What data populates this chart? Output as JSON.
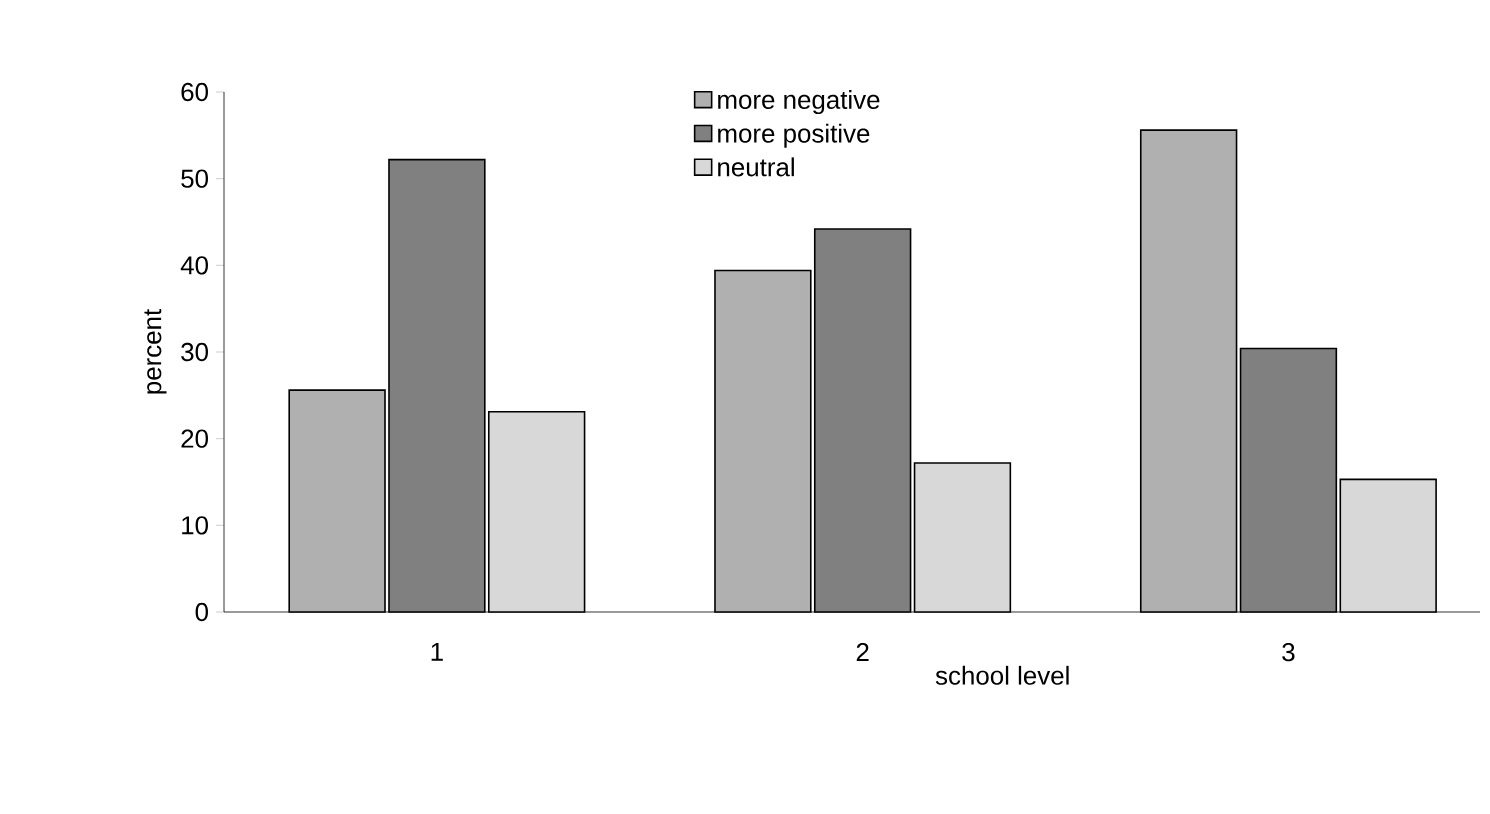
{
  "chart_data": {
    "type": "bar",
    "xlabel": "school level",
    "ylabel": "percent",
    "categories": [
      "1",
      "2",
      "3"
    ],
    "series": [
      {
        "name": "more negative",
        "color": "#b0b0b0",
        "values": [
          25.6,
          39.4,
          55.6
        ]
      },
      {
        "name": "more positive",
        "color": "#808080",
        "values": [
          52.2,
          44.2,
          30.4
        ]
      },
      {
        "name": "neutral",
        "color": "#d8d8d8",
        "values": [
          23.1,
          17.2,
          15.3
        ]
      }
    ],
    "ylim": [
      0,
      60
    ],
    "yticks": [
      0,
      10,
      20,
      30,
      40,
      50,
      60
    ],
    "legend": "top",
    "grid": false
  }
}
